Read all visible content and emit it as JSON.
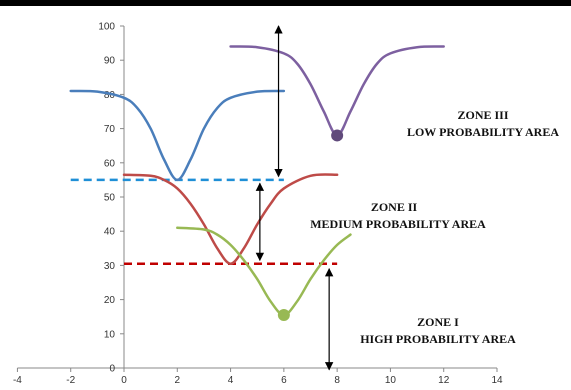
{
  "chart_data": {
    "type": "line",
    "xlim": [
      -4,
      14
    ],
    "ylim": [
      0,
      100
    ],
    "x_ticks": [
      "-4",
      "-2",
      "0",
      "2",
      "4",
      "6",
      "8",
      "10",
      "12",
      "14"
    ],
    "y_ticks": [
      "0",
      "10",
      "20",
      "30",
      "40",
      "50",
      "60",
      "70",
      "80",
      "90",
      "100"
    ],
    "grid": false,
    "series": [
      {
        "color": "#4a7ebb",
        "x": [
          -2,
          -1,
          0,
          0.5,
          1,
          1.5,
          2,
          2.5,
          3,
          3.5,
          4,
          5,
          6
        ],
        "y": [
          81,
          80.8,
          79,
          76,
          70,
          61,
          55,
          61,
          70,
          76,
          79,
          80.8,
          81
        ]
      },
      {
        "color": "#be4b48",
        "x": [
          0,
          1,
          1.5,
          2,
          2.5,
          3,
          3.5,
          4,
          4.5,
          5,
          5.5,
          6,
          7,
          8
        ],
        "y": [
          56.5,
          56.2,
          55,
          52.5,
          48,
          42,
          35,
          30.5,
          35,
          42,
          48,
          52.5,
          56.2,
          56.5
        ]
      },
      {
        "color": "#98b954",
        "x": [
          2,
          3,
          3.5,
          4,
          4.5,
          5,
          5.5,
          6,
          6.5,
          7,
          7.5,
          8,
          8.5
        ],
        "y": [
          41,
          40.5,
          39,
          36,
          31.5,
          26,
          19.5,
          15.5,
          19.5,
          26,
          31.5,
          36,
          39
        ]
      },
      {
        "color": "#7d60a0",
        "x": [
          4,
          5,
          6,
          6.5,
          7,
          7.5,
          8,
          8.5,
          9,
          9.5,
          10,
          11,
          12
        ],
        "y": [
          94,
          93.8,
          92,
          89,
          83,
          75,
          68,
          75,
          83,
          89,
          92,
          93.8,
          94
        ]
      }
    ],
    "markers": [
      {
        "x": 8,
        "y": 68,
        "color": "#604a7b"
      },
      {
        "x": 6,
        "y": 15.5,
        "color": "#98b954"
      }
    ],
    "thresholds": [
      {
        "y": 55,
        "x1": -2,
        "x2": 6,
        "color": "#1f8fd6"
      },
      {
        "y": 30.5,
        "x1": 0,
        "x2": 8,
        "color": "#c00000"
      }
    ],
    "arrows": [
      {
        "x": 5.8,
        "y1": 100,
        "y2": 56
      },
      {
        "x": 5.1,
        "y1": 54,
        "y2": 31.5
      },
      {
        "x": 7.7,
        "y1": 29,
        "y2": -0.5
      }
    ],
    "annotations": [
      {
        "lines": [
          "ZONE III",
          "LOW PROBABILITY AREA"
        ]
      },
      {
        "lines": [
          "ZONE II",
          "MEDIUM PROBABILITY AREA"
        ]
      },
      {
        "lines": [
          "ZONE I",
          "HIGH PROBABILITY AREA"
        ]
      }
    ]
  }
}
